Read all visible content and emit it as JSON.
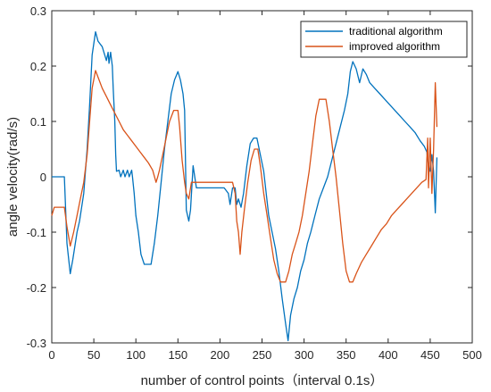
{
  "chart_data": {
    "type": "line",
    "xlabel": "number of control points（interval 0.1s）",
    "ylabel": "angle velocity(rad/s)",
    "xlim": [
      0,
      500
    ],
    "ylim": [
      -0.3,
      0.3
    ],
    "xticks": [
      0,
      50,
      100,
      150,
      200,
      250,
      300,
      350,
      400,
      450,
      500
    ],
    "yticks": [
      0.3,
      0.2,
      0.1,
      0,
      -0.1,
      -0.2,
      -0.3
    ],
    "xtick_labels": [
      "0",
      "50",
      "100",
      "150",
      "200",
      "250",
      "300",
      "350",
      "400",
      "450",
      "500"
    ],
    "ytick_labels": [
      "0.3",
      "0.2",
      "0.1",
      "0",
      "-0.1",
      "-0.2",
      "-0.3"
    ],
    "grid": false,
    "legend_position": "top-right",
    "series": [
      {
        "name": "traditional algorithm",
        "color": "#0072BD",
        "points": [
          [
            0,
            0
          ],
          [
            15,
            0
          ],
          [
            18,
            -0.12
          ],
          [
            22,
            -0.175
          ],
          [
            25,
            -0.15
          ],
          [
            30,
            -0.1
          ],
          [
            33,
            -0.08
          ],
          [
            38,
            -0.03
          ],
          [
            42,
            0.05
          ],
          [
            45,
            0.13
          ],
          [
            48,
            0.22
          ],
          [
            52,
            0.262
          ],
          [
            55,
            0.245
          ],
          [
            60,
            0.235
          ],
          [
            63,
            0.22
          ],
          [
            65,
            0.21
          ],
          [
            67,
            0.225
          ],
          [
            68,
            0.205
          ],
          [
            70,
            0.225
          ],
          [
            72,
            0.2
          ],
          [
            73,
            0.16
          ],
          [
            75,
            0.1
          ],
          [
            76,
            0.04
          ],
          [
            77,
            0.01
          ],
          [
            80,
            0.012
          ],
          [
            82,
            0.0
          ],
          [
            85,
            0.012
          ],
          [
            87,
            0.0
          ],
          [
            90,
            0.012
          ],
          [
            92,
            0.0
          ],
          [
            95,
            0.012
          ],
          [
            96,
            0.0
          ],
          [
            98,
            -0.03
          ],
          [
            100,
            -0.07
          ],
          [
            103,
            -0.1
          ],
          [
            106,
            -0.14
          ],
          [
            110,
            -0.158
          ],
          [
            118,
            -0.158
          ],
          [
            122,
            -0.12
          ],
          [
            126,
            -0.07
          ],
          [
            130,
            -0.01
          ],
          [
            134,
            0.05
          ],
          [
            138,
            0.1
          ],
          [
            142,
            0.15
          ],
          [
            146,
            0.175
          ],
          [
            150,
            0.19
          ],
          [
            153,
            0.175
          ],
          [
            156,
            0.15
          ],
          [
            158,
            0.12
          ],
          [
            160,
            -0.06
          ],
          [
            163,
            -0.08
          ],
          [
            165,
            -0.06
          ],
          [
            168,
            0.02
          ],
          [
            172,
            -0.02
          ],
          [
            175,
            -0.02
          ],
          [
            190,
            -0.02
          ],
          [
            205,
            -0.02
          ],
          [
            210,
            -0.03
          ],
          [
            212,
            -0.05
          ],
          [
            215,
            -0.02
          ],
          [
            218,
            -0.02
          ],
          [
            220,
            -0.05
          ],
          [
            222,
            -0.04
          ],
          [
            225,
            -0.055
          ],
          [
            228,
            -0.03
          ],
          [
            232,
            0.02
          ],
          [
            236,
            0.06
          ],
          [
            240,
            0.07
          ],
          [
            244,
            0.07
          ],
          [
            248,
            0.04
          ],
          [
            252,
            0.01
          ],
          [
            255,
            -0.03
          ],
          [
            258,
            -0.07
          ],
          [
            262,
            -0.1
          ],
          [
            266,
            -0.13
          ],
          [
            270,
            -0.17
          ],
          [
            274,
            -0.22
          ],
          [
            278,
            -0.265
          ],
          [
            281,
            -0.296
          ],
          [
            284,
            -0.25
          ],
          [
            288,
            -0.22
          ],
          [
            292,
            -0.2
          ],
          [
            296,
            -0.17
          ],
          [
            300,
            -0.15
          ],
          [
            304,
            -0.12
          ],
          [
            308,
            -0.1
          ],
          [
            313,
            -0.07
          ],
          [
            318,
            -0.04
          ],
          [
            323,
            -0.02
          ],
          [
            328,
            0.0
          ],
          [
            333,
            0.03
          ],
          [
            338,
            0.06
          ],
          [
            343,
            0.09
          ],
          [
            348,
            0.12
          ],
          [
            352,
            0.15
          ],
          [
            355,
            0.19
          ],
          [
            358,
            0.208
          ],
          [
            362,
            0.195
          ],
          [
            366,
            0.17
          ],
          [
            370,
            0.195
          ],
          [
            374,
            0.185
          ],
          [
            378,
            0.17
          ],
          [
            384,
            0.16
          ],
          [
            390,
            0.15
          ],
          [
            396,
            0.14
          ],
          [
            402,
            0.13
          ],
          [
            408,
            0.12
          ],
          [
            414,
            0.11
          ],
          [
            420,
            0.1
          ],
          [
            426,
            0.09
          ],
          [
            432,
            0.08
          ],
          [
            438,
            0.065
          ],
          [
            443,
            0.055
          ],
          [
            446,
            0.045
          ],
          [
            448,
            0.02
          ],
          [
            450,
            0.01
          ],
          [
            452,
            0.04
          ],
          [
            454,
            0.01
          ],
          [
            456,
            -0.065
          ],
          [
            458,
            0.035
          ]
        ]
      },
      {
        "name": "improved algorithm",
        "color": "#D95319",
        "points": [
          [
            0,
            -0.07
          ],
          [
            3,
            -0.055
          ],
          [
            15,
            -0.055
          ],
          [
            18,
            -0.09
          ],
          [
            22,
            -0.125
          ],
          [
            26,
            -0.1
          ],
          [
            30,
            -0.07
          ],
          [
            34,
            -0.04
          ],
          [
            38,
            -0.01
          ],
          [
            42,
            0.04
          ],
          [
            45,
            0.1
          ],
          [
            48,
            0.16
          ],
          [
            52,
            0.192
          ],
          [
            55,
            0.18
          ],
          [
            60,
            0.16
          ],
          [
            65,
            0.145
          ],
          [
            70,
            0.13
          ],
          [
            75,
            0.115
          ],
          [
            80,
            0.1
          ],
          [
            85,
            0.085
          ],
          [
            90,
            0.075
          ],
          [
            95,
            0.065
          ],
          [
            100,
            0.055
          ],
          [
            105,
            0.045
          ],
          [
            110,
            0.035
          ],
          [
            115,
            0.025
          ],
          [
            120,
            0.012
          ],
          [
            124,
            -0.01
          ],
          [
            126,
            0.0
          ],
          [
            128,
            0.012
          ],
          [
            132,
            0.04
          ],
          [
            136,
            0.07
          ],
          [
            140,
            0.1
          ],
          [
            145,
            0.12
          ],
          [
            150,
            0.12
          ],
          [
            152,
            0.09
          ],
          [
            155,
            0.03
          ],
          [
            158,
            -0.01
          ],
          [
            160,
            -0.03
          ],
          [
            163,
            -0.04
          ],
          [
            166,
            -0.01
          ],
          [
            168,
            -0.01
          ],
          [
            200,
            -0.01
          ],
          [
            215,
            -0.01
          ],
          [
            218,
            -0.03
          ],
          [
            220,
            -0.08
          ],
          [
            222,
            -0.1
          ],
          [
            224,
            -0.14
          ],
          [
            226,
            -0.1
          ],
          [
            229,
            -0.06
          ],
          [
            233,
            -0.01
          ],
          [
            237,
            0.03
          ],
          [
            241,
            0.05
          ],
          [
            245,
            0.05
          ],
          [
            248,
            0.02
          ],
          [
            252,
            -0.03
          ],
          [
            256,
            -0.07
          ],
          [
            260,
            -0.11
          ],
          [
            264,
            -0.15
          ],
          [
            268,
            -0.175
          ],
          [
            272,
            -0.19
          ],
          [
            278,
            -0.19
          ],
          [
            282,
            -0.17
          ],
          [
            286,
            -0.14
          ],
          [
            290,
            -0.12
          ],
          [
            294,
            -0.1
          ],
          [
            298,
            -0.07
          ],
          [
            302,
            -0.03
          ],
          [
            306,
            0.01
          ],
          [
            310,
            0.06
          ],
          [
            314,
            0.11
          ],
          [
            318,
            0.14
          ],
          [
            326,
            0.14
          ],
          [
            330,
            0.1
          ],
          [
            334,
            0.05
          ],
          [
            338,
            0.0
          ],
          [
            342,
            -0.06
          ],
          [
            346,
            -0.12
          ],
          [
            350,
            -0.17
          ],
          [
            354,
            -0.19
          ],
          [
            358,
            -0.19
          ],
          [
            362,
            -0.175
          ],
          [
            368,
            -0.155
          ],
          [
            374,
            -0.14
          ],
          [
            380,
            -0.125
          ],
          [
            386,
            -0.11
          ],
          [
            392,
            -0.095
          ],
          [
            398,
            -0.085
          ],
          [
            404,
            -0.07
          ],
          [
            410,
            -0.06
          ],
          [
            416,
            -0.05
          ],
          [
            422,
            -0.04
          ],
          [
            428,
            -0.03
          ],
          [
            434,
            -0.02
          ],
          [
            440,
            -0.01
          ],
          [
            445,
            -0.005
          ],
          [
            447,
            0.07
          ],
          [
            448,
            -0.02
          ],
          [
            450,
            0.07
          ],
          [
            452,
            -0.03
          ],
          [
            454,
            0.05
          ],
          [
            456,
            0.17
          ],
          [
            458,
            0.09
          ]
        ]
      }
    ]
  }
}
